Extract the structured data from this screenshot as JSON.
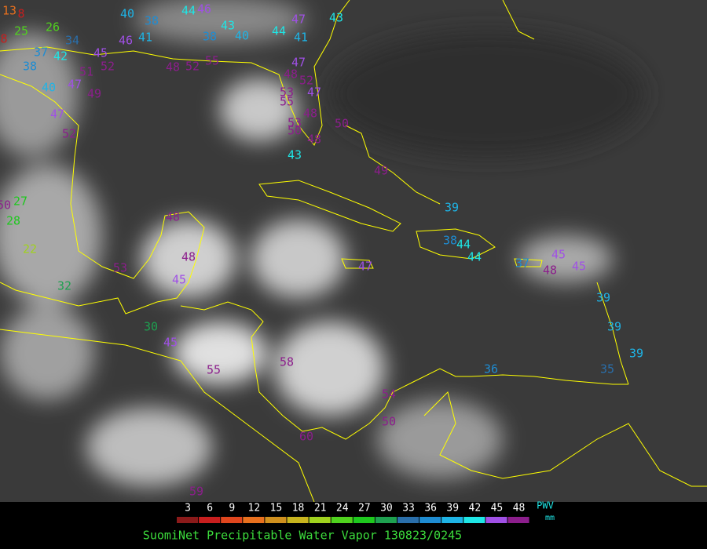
{
  "map": {
    "stations": [
      13,
      8,
      25,
      26,
      8,
      34,
      37,
      42,
      38,
      40,
      47,
      51,
      52,
      45,
      46,
      40,
      38,
      44,
      46,
      43,
      40,
      41,
      38,
      44,
      47,
      41,
      43,
      47,
      48,
      52,
      55,
      48,
      52,
      47,
      55,
      53,
      48,
      53,
      50,
      48,
      50,
      43,
      49,
      39,
      38,
      44,
      44,
      47,
      37,
      48,
      45,
      45,
      39,
      39,
      39,
      35,
      36,
      48,
      48,
      45,
      53,
      32,
      30,
      45,
      55,
      58,
      54,
      50,
      60,
      59,
      47,
      52,
      49,
      27,
      50,
      28,
      22
    ]
  },
  "colorbar": {
    "ticks": [
      3,
      6,
      9,
      12,
      15,
      18,
      21,
      24,
      27,
      30,
      33,
      36,
      39,
      42,
      45,
      48
    ],
    "colors": [
      "#8b1a1a",
      "#c81e1e",
      "#e0461e",
      "#e8701e",
      "#d0901e",
      "#c8b41e",
      "#a0d21e",
      "#50d21e",
      "#1ec81e",
      "#1ea050",
      "#2a6eaa",
      "#1e8cd2",
      "#1eb4e6",
      "#1ee6e6",
      "#a050e6",
      "#8c1e8c"
    ],
    "unit_top": "PWV",
    "unit_bottom": "mm"
  },
  "footer": "SuomiNet Precipitable Water Vapor 130823/0245"
}
